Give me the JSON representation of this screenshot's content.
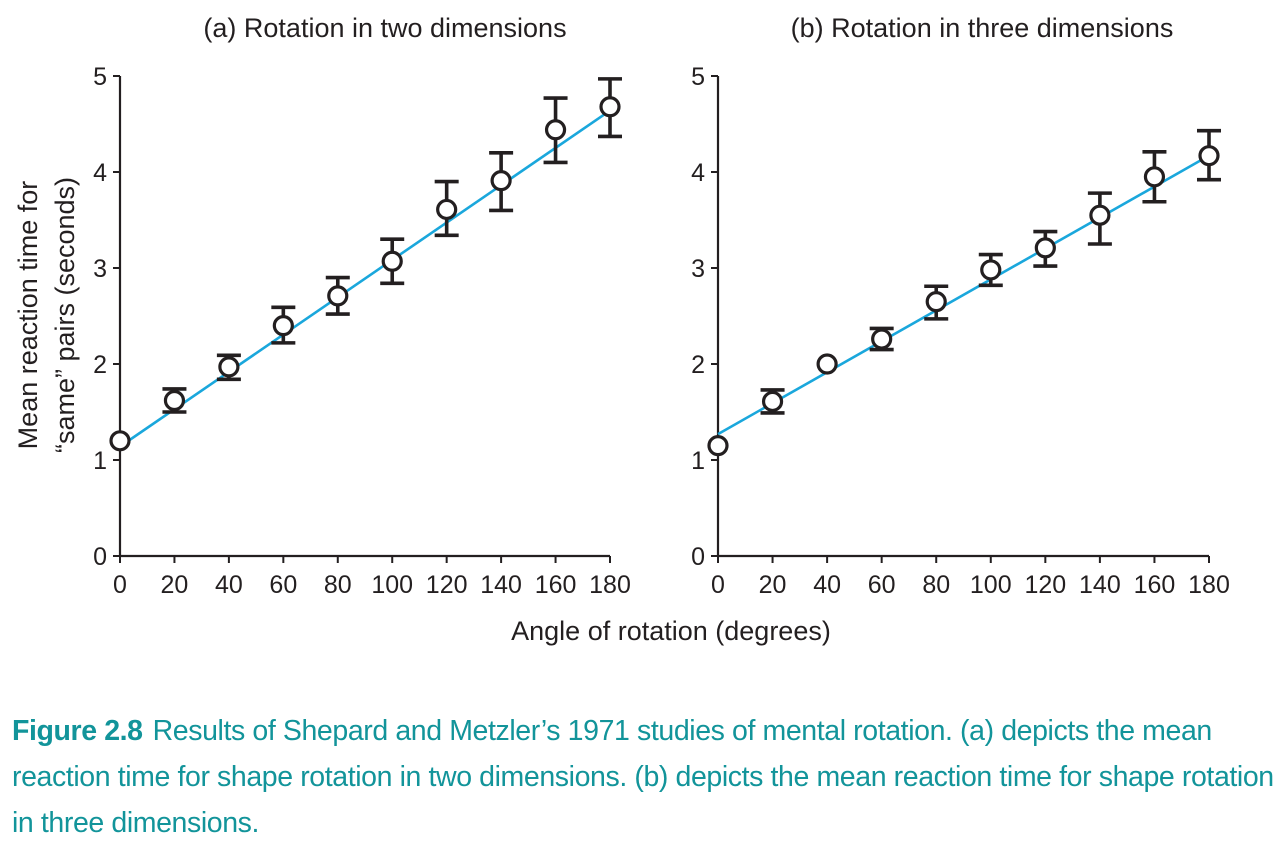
{
  "chart_data": [
    {
      "type": "scatter",
      "title": "(a) Rotation in two dimensions",
      "xlabel": "Angle of rotation (degrees)",
      "ylabel_lines": [
        "Mean reaction time for",
        "“same” pairs (seconds)"
      ],
      "x_ticks": [
        "0",
        "20",
        "40",
        "60",
        "80",
        "100",
        "120",
        "140",
        "160",
        "180"
      ],
      "y_ticks": [
        "0",
        "1",
        "2",
        "3",
        "4",
        "5"
      ],
      "xlim": [
        0,
        180
      ],
      "ylim": [
        0,
        5
      ],
      "grid": false,
      "legend": "none",
      "x": [
        0,
        20,
        40,
        60,
        80,
        100,
        120,
        140,
        160,
        180
      ],
      "y": [
        1.2,
        1.62,
        1.97,
        2.4,
        2.71,
        3.07,
        3.61,
        3.91,
        4.44,
        4.68
      ],
      "err_low": [
        null,
        1.5,
        1.84,
        2.22,
        2.52,
        2.84,
        3.34,
        3.6,
        4.1,
        4.37
      ],
      "err_high": [
        null,
        1.74,
        2.09,
        2.59,
        2.9,
        3.3,
        3.9,
        4.2,
        4.77,
        4.97
      ],
      "fit_line": [
        [
          0,
          1.14
        ],
        [
          180,
          4.64
        ]
      ],
      "colors": {
        "fit": "#1aa7dc",
        "markers": "#231f20"
      }
    },
    {
      "type": "scatter",
      "title": "(b) Rotation in three dimensions",
      "xlabel": "Angle of rotation (degrees)",
      "x_ticks": [
        "0",
        "20",
        "40",
        "60",
        "80",
        "100",
        "120",
        "140",
        "160",
        "180"
      ],
      "y_ticks": [
        "0",
        "1",
        "2",
        "3",
        "4",
        "5"
      ],
      "xlim": [
        0,
        180
      ],
      "ylim": [
        0,
        5
      ],
      "grid": false,
      "legend": "none",
      "x": [
        0,
        20,
        40,
        60,
        80,
        100,
        120,
        140,
        160,
        180
      ],
      "y": [
        1.15,
        1.61,
        2.0,
        2.26,
        2.65,
        2.98,
        3.21,
        3.55,
        3.95,
        4.17
      ],
      "err_low": [
        null,
        1.49,
        null,
        2.15,
        2.47,
        2.82,
        3.02,
        3.25,
        3.69,
        3.92
      ],
      "err_high": [
        null,
        1.73,
        null,
        2.37,
        2.81,
        3.14,
        3.38,
        3.78,
        4.21,
        4.43
      ],
      "fit_line": [
        [
          0,
          1.27
        ],
        [
          180,
          4.17
        ]
      ],
      "colors": {
        "fit": "#1aa7dc",
        "markers": "#231f20"
      }
    }
  ],
  "shared_xlabel": "Angle of rotation (degrees)",
  "caption": {
    "label": "Figure 2.8",
    "text": "Results of Shepard and Metzler’s 1971 studies of mental rotation. (a) depicts the mean reaction time for shape rotation in two dimensions. (b) depicts the mean reaction time for shape rotation in three dimensions."
  }
}
